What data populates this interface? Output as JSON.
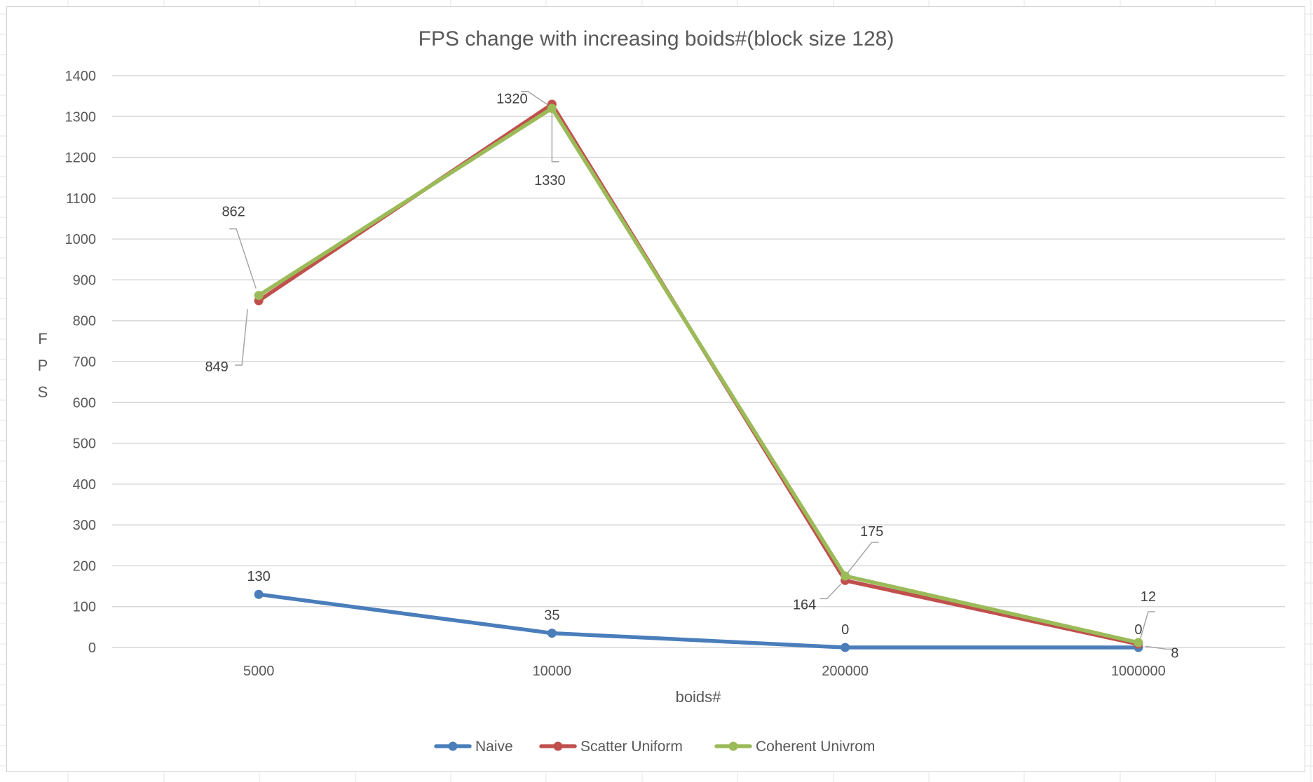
{
  "chart_data": {
    "type": "line",
    "title": "FPS change with increasing boids#(block size 128)",
    "xlabel": "boids#",
    "ylabel": "FPS",
    "categories": [
      "5000",
      "10000",
      "200000",
      "1000000"
    ],
    "ylim": [
      0,
      1400
    ],
    "yticks": [
      0,
      100,
      200,
      300,
      400,
      500,
      600,
      700,
      800,
      900,
      1000,
      1100,
      1200,
      1300,
      1400
    ],
    "grid": true,
    "legend_position": "bottom",
    "series": [
      {
        "name": "Naive",
        "color": "#4a7ebb",
        "values": [
          130,
          35,
          0,
          0
        ]
      },
      {
        "name": "Scatter Uniform",
        "color": "#c0504d",
        "values": [
          849,
          1330,
          164,
          8
        ]
      },
      {
        "name": "Coherent Univrom",
        "color": "#9bbb59",
        "values": [
          862,
          1320,
          175,
          12
        ]
      }
    ]
  }
}
